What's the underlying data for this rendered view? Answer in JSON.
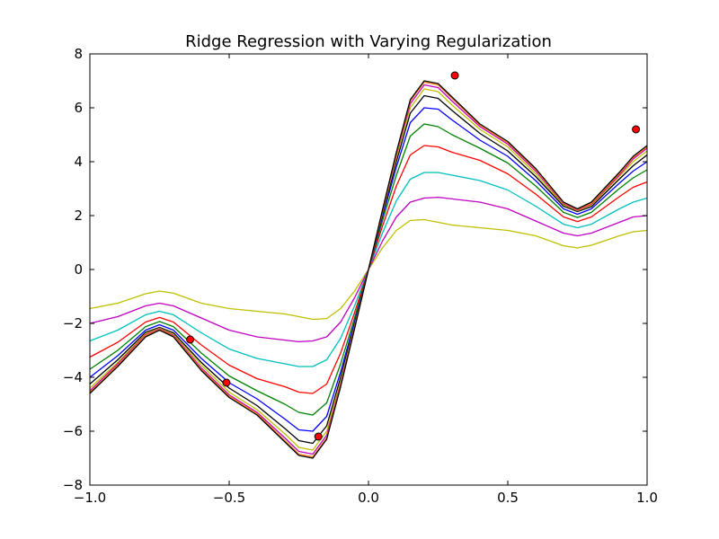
{
  "chart_data": {
    "type": "line",
    "title": "Ridge Regression with Varying Regularization",
    "xlabel": "",
    "ylabel": "",
    "xlim": [
      -1.0,
      1.0
    ],
    "ylim": [
      -8,
      8
    ],
    "xticks": [
      "−1.0",
      "−0.5",
      "0.0",
      "0.5",
      "1.0"
    ],
    "yticks": [
      "−8",
      "−6",
      "−4",
      "−2",
      "0",
      "2",
      "4",
      "6",
      "8"
    ],
    "grid": false,
    "legend": "none",
    "x": [
      -1.0,
      -0.9,
      -0.8,
      -0.75,
      -0.7,
      -0.6,
      -0.5,
      -0.4,
      -0.3,
      -0.25,
      -0.2,
      -0.15,
      -0.1,
      -0.05,
      0.0,
      0.05,
      0.1,
      0.15,
      0.2,
      0.25,
      0.3,
      0.4,
      0.5,
      0.6,
      0.7,
      0.75,
      0.8,
      0.9,
      0.95,
      1.0
    ],
    "series": [
      {
        "color": "#000000",
        "values": [
          -4.6,
          -3.6,
          -2.5,
          -2.25,
          -2.5,
          -3.75,
          -4.75,
          -5.4,
          -6.4,
          -6.9,
          -7.0,
          -6.3,
          -4.35,
          -2.2,
          0.0,
          2.2,
          4.35,
          6.3,
          7.0,
          6.9,
          6.4,
          5.4,
          4.75,
          3.75,
          2.5,
          2.25,
          2.5,
          3.6,
          4.2,
          4.6
        ]
      },
      {
        "color": "#ff7f0e",
        "values": [
          -4.55,
          -3.55,
          -2.45,
          -2.22,
          -2.47,
          -3.7,
          -4.7,
          -5.35,
          -6.35,
          -6.85,
          -6.95,
          -6.25,
          -4.3,
          -2.18,
          0.0,
          2.18,
          4.3,
          6.25,
          6.95,
          6.85,
          6.35,
          5.35,
          4.7,
          3.7,
          2.47,
          2.22,
          2.45,
          3.55,
          4.15,
          4.55
        ]
      },
      {
        "color": "#bf00bf",
        "values": [
          -4.5,
          -3.5,
          -2.42,
          -2.2,
          -2.44,
          -3.65,
          -4.65,
          -5.3,
          -6.25,
          -6.75,
          -6.85,
          -6.15,
          -4.25,
          -2.15,
          0.0,
          2.15,
          4.25,
          6.15,
          6.85,
          6.75,
          6.25,
          5.3,
          4.65,
          3.65,
          2.44,
          2.2,
          2.42,
          3.5,
          4.1,
          4.5
        ]
      },
      {
        "color": "#bfbf00",
        "values": [
          -4.4,
          -3.45,
          -2.38,
          -2.18,
          -2.4,
          -3.55,
          -4.55,
          -5.2,
          -6.1,
          -6.6,
          -6.7,
          -6.0,
          -4.15,
          -2.1,
          0.0,
          2.1,
          4.15,
          6.0,
          6.7,
          6.6,
          6.1,
          5.2,
          4.55,
          3.55,
          2.4,
          2.18,
          2.38,
          3.45,
          4.0,
          4.4
        ]
      },
      {
        "color": "#000000",
        "values": [
          -4.25,
          -3.35,
          -2.33,
          -2.15,
          -2.35,
          -3.45,
          -4.4,
          -5.05,
          -5.9,
          -6.35,
          -6.45,
          -5.8,
          -4.0,
          -2.05,
          0.0,
          2.05,
          4.0,
          5.8,
          6.45,
          6.35,
          5.9,
          5.05,
          4.4,
          3.45,
          2.35,
          2.15,
          2.33,
          3.35,
          3.85,
          4.25
        ]
      },
      {
        "color": "#0000ff",
        "values": [
          -4.0,
          -3.2,
          -2.25,
          -2.05,
          -2.25,
          -3.3,
          -4.2,
          -4.8,
          -5.55,
          -5.95,
          -6.0,
          -5.45,
          -3.8,
          -1.95,
          0.0,
          1.95,
          3.8,
          5.45,
          6.0,
          5.95,
          5.55,
          4.8,
          4.2,
          3.3,
          2.25,
          2.05,
          2.25,
          3.2,
          3.65,
          4.0
        ]
      },
      {
        "color": "#008000",
        "values": [
          -3.7,
          -3.0,
          -2.12,
          -1.93,
          -2.12,
          -3.1,
          -3.95,
          -4.5,
          -5.0,
          -5.3,
          -5.4,
          -4.95,
          -3.5,
          -1.8,
          0.0,
          1.8,
          3.5,
          4.95,
          5.4,
          5.3,
          5.0,
          4.5,
          3.95,
          3.1,
          2.12,
          1.93,
          2.12,
          3.0,
          3.4,
          3.7
        ]
      },
      {
        "color": "#ff0000",
        "values": [
          -3.25,
          -2.7,
          -1.95,
          -1.78,
          -1.95,
          -2.8,
          -3.55,
          -4.05,
          -4.35,
          -4.55,
          -4.6,
          -4.25,
          -3.1,
          -1.6,
          0.0,
          1.6,
          3.1,
          4.25,
          4.6,
          4.55,
          4.35,
          4.05,
          3.55,
          2.8,
          1.95,
          1.78,
          1.95,
          2.7,
          3.05,
          3.25
        ]
      },
      {
        "color": "#00bfbf",
        "values": [
          -2.65,
          -2.25,
          -1.68,
          -1.55,
          -1.68,
          -2.35,
          -2.95,
          -3.3,
          -3.5,
          -3.6,
          -3.6,
          -3.35,
          -2.55,
          -1.35,
          0.0,
          1.35,
          2.55,
          3.35,
          3.6,
          3.6,
          3.5,
          3.3,
          2.95,
          2.35,
          1.68,
          1.55,
          1.68,
          2.25,
          2.5,
          2.65
        ]
      },
      {
        "color": "#bf00bf",
        "values": [
          -2.0,
          -1.75,
          -1.35,
          -1.25,
          -1.35,
          -1.8,
          -2.25,
          -2.5,
          -2.62,
          -2.68,
          -2.65,
          -2.5,
          -1.95,
          -1.05,
          0.0,
          1.05,
          1.95,
          2.5,
          2.65,
          2.68,
          2.62,
          2.5,
          2.25,
          1.8,
          1.35,
          1.25,
          1.35,
          1.75,
          1.95,
          2.0
        ]
      },
      {
        "color": "#bfbf00",
        "values": [
          -1.45,
          -1.25,
          -0.9,
          -0.8,
          -0.88,
          -1.25,
          -1.45,
          -1.55,
          -1.65,
          -1.75,
          -1.85,
          -1.82,
          -1.45,
          -0.8,
          0.0,
          0.8,
          1.45,
          1.82,
          1.85,
          1.75,
          1.65,
          1.55,
          1.45,
          1.25,
          0.88,
          0.8,
          0.9,
          1.25,
          1.4,
          1.45
        ]
      }
    ],
    "points": [
      {
        "x": -0.64,
        "y": -2.6
      },
      {
        "x": -0.51,
        "y": -4.2
      },
      {
        "x": -0.18,
        "y": -6.2
      },
      {
        "x": 0.31,
        "y": 7.2
      },
      {
        "x": 0.96,
        "y": 5.2
      }
    ],
    "point_color": "#ff0000"
  }
}
